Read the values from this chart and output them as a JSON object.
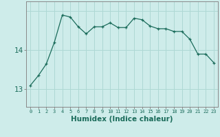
{
  "x": [
    0,
    1,
    2,
    3,
    4,
    5,
    6,
    7,
    8,
    9,
    10,
    11,
    12,
    13,
    14,
    15,
    16,
    17,
    18,
    19,
    20,
    21,
    22,
    23
  ],
  "y": [
    13.1,
    13.35,
    13.65,
    14.2,
    14.9,
    14.85,
    14.6,
    14.42,
    14.6,
    14.6,
    14.7,
    14.58,
    14.58,
    14.82,
    14.78,
    14.62,
    14.55,
    14.55,
    14.48,
    14.48,
    14.28,
    13.9,
    13.9,
    13.68
  ],
  "line_color": "#1a6b5a",
  "marker": "+",
  "bg_color": "#ceecea",
  "grid_color": "#aed8d4",
  "xlabel": "Humidex (Indice chaleur)",
  "ytick_vals": [
    13,
    14
  ],
  "xlim": [
    -0.5,
    23.5
  ],
  "ylim": [
    12.55,
    15.25
  ],
  "xticklabels": [
    "0",
    "1",
    "2",
    "3",
    "4",
    "5",
    "6",
    "7",
    "8",
    "9",
    "10",
    "11",
    "12",
    "13",
    "14",
    "15",
    "16",
    "17",
    "18",
    "19",
    "20",
    "21",
    "22",
    "23"
  ]
}
